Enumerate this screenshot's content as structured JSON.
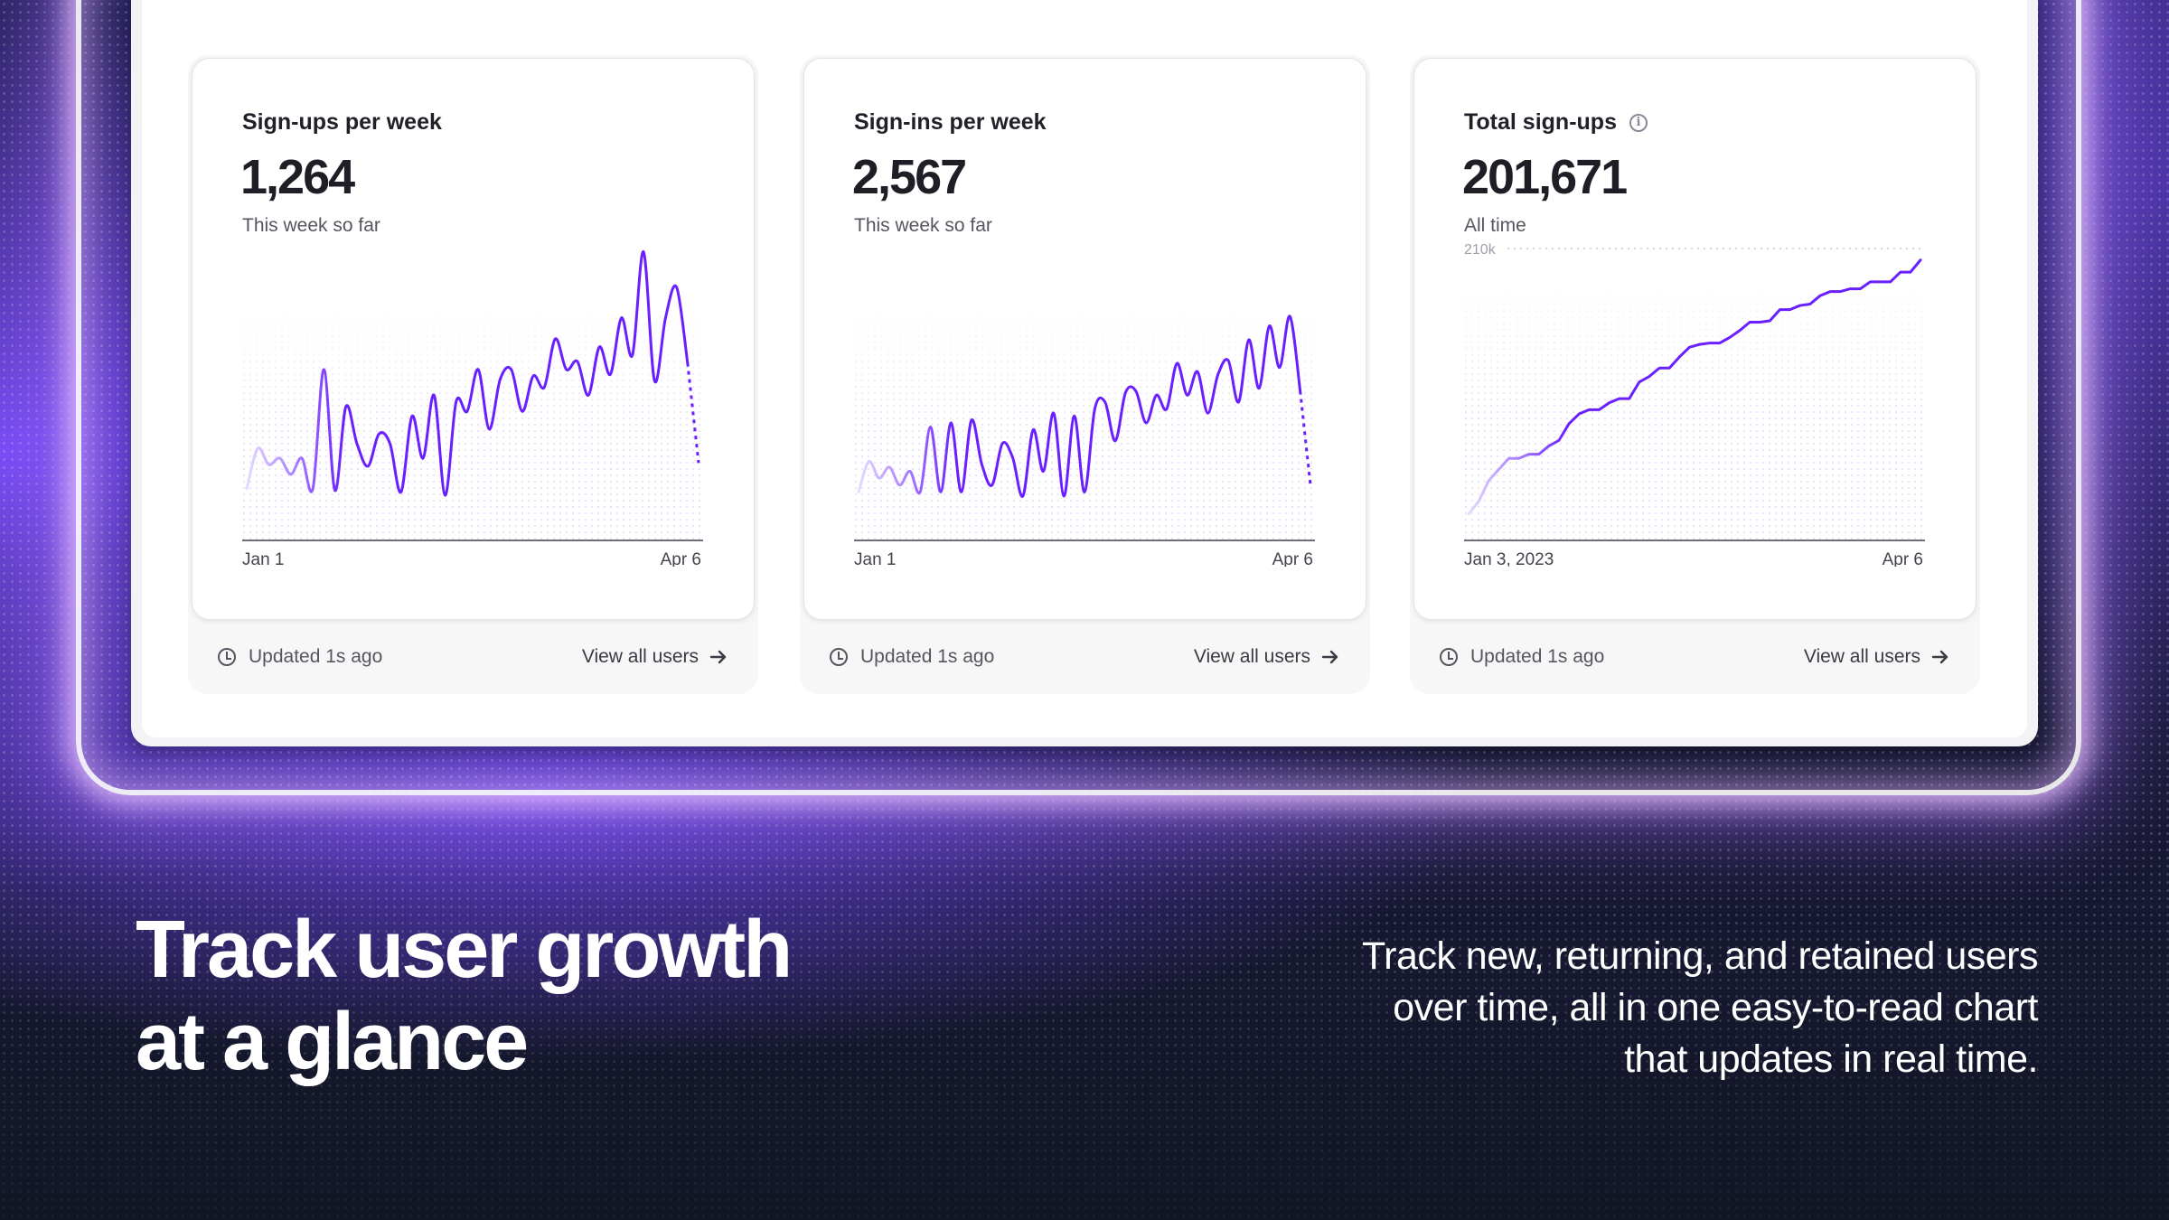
{
  "accent_color": "#6a1fff",
  "cards": [
    {
      "title": "Sign-ups per week",
      "value": "1,264",
      "subtitle": "This week so far",
      "updated": "Updated 1s ago",
      "link": "View all users",
      "icons": [
        "clock-icon",
        "arrow-right-icon"
      ]
    },
    {
      "title": "Sign-ins per week",
      "value": "2,567",
      "subtitle": "This week so far",
      "updated": "Updated 1s ago",
      "link": "View all users",
      "icons": [
        "clock-icon",
        "arrow-right-icon"
      ]
    },
    {
      "title": "Total sign-ups",
      "value": "201,671",
      "subtitle": "All time",
      "updated": "Updated 1s ago",
      "link": "View all users",
      "icons": [
        "info-icon",
        "clock-icon",
        "arrow-right-icon"
      ]
    }
  ],
  "headline": {
    "line1": "Track user growth",
    "line2": "at a glance"
  },
  "description": "Track new, returning, and retained users over time, all in one easy-to-read chart that updates in real time.",
  "chart_data": [
    {
      "type": "line",
      "title": "Sign-ups per week",
      "x_start": "Jan 1",
      "x_end": "Apr 6",
      "grid": false,
      "ylim": [
        0,
        181
      ],
      "last_segment": "dashed",
      "values": [
        32,
        57,
        47,
        51,
        41,
        51,
        32,
        106,
        31,
        83,
        60,
        46,
        66,
        60,
        30,
        77,
        51,
        90,
        28,
        86,
        80,
        106,
        69,
        100,
        106,
        80,
        102,
        95,
        125,
        106,
        111,
        90,
        120,
        103,
        138,
        115,
        179,
        99,
        138,
        157,
        110,
        48
      ]
    },
    {
      "type": "line",
      "title": "Sign-ins per week",
      "x_start": "Jan 1",
      "x_end": "Apr 6",
      "grid": false,
      "ylim": [
        0,
        211
      ],
      "last_segment": "dashed",
      "values": [
        35,
        57,
        45,
        53,
        40,
        50,
        35,
        82,
        35,
        85,
        35,
        87,
        55,
        40,
        70,
        60,
        32,
        80,
        50,
        92,
        32,
        90,
        35,
        95,
        100,
        72,
        107,
        108,
        85,
        105,
        95,
        128,
        105,
        122,
        92,
        120,
        130,
        100,
        145,
        110,
        155,
        125,
        162,
        108,
        40
      ]
    },
    {
      "type": "line",
      "title": "Total sign-ups",
      "x_start": "Jan 3, 2023",
      "x_end": "Apr 6",
      "grid": true,
      "gridline_label": "210k",
      "ylim": [
        0,
        210
      ],
      "unit": "k",
      "values": [
        19,
        28,
        43,
        51,
        59,
        59,
        62,
        62,
        68,
        72,
        84,
        91,
        94,
        94,
        99,
        102,
        102,
        114,
        118,
        124,
        124,
        132,
        139,
        141,
        142,
        142,
        146,
        151,
        157,
        157,
        158,
        166,
        166,
        169,
        170,
        176,
        179,
        179,
        181,
        181,
        186,
        186,
        186,
        193,
        193,
        201.7
      ]
    }
  ]
}
